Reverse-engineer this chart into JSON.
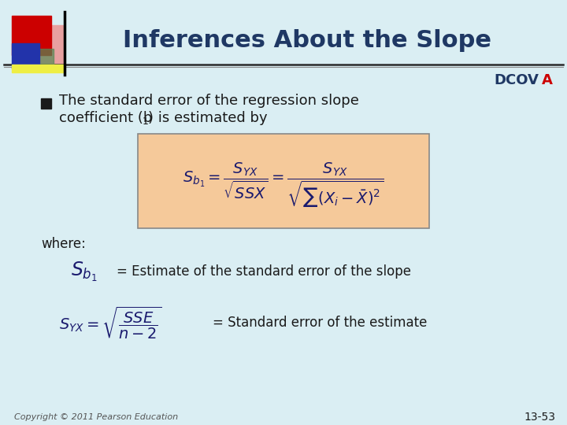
{
  "title": "Inferences About the Slope",
  "dcova": "DCOV",
  "dcova_a": "A",
  "bg_color": "#daeef3",
  "title_color": "#1f3864",
  "text_color": "#1a1a1a",
  "box_color": "#f5c99a",
  "box_edge_color": "#888888",
  "where_text": "where:",
  "sb1_desc": "= Estimate of the standard error of the slope",
  "syx_desc": "= Standard error of the estimate",
  "copyright": "Copyright © 2011 Pearson Education",
  "page_num": "13-53",
  "header_line_color": "#888888",
  "dark_line_color": "#2a2a2a",
  "formula_color": "#1a1a6e",
  "dcova_color": "#1f3864",
  "dcova_a_color": "#cc0000",
  "bullet_color": "#1a1a1a",
  "red_sq": "#cc0000",
  "pink_sq": "#e8a0a0",
  "blue_sq": "#2233aa",
  "green_sq": "#558855",
  "yellow_rect": "#eeee44"
}
